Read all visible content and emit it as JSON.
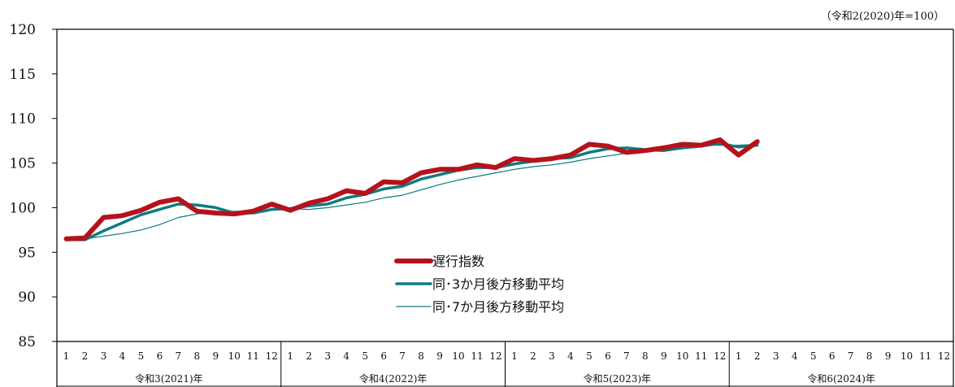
{
  "chart_data": {
    "type": "line",
    "unit_note": "（令和2(2020)年=100）",
    "ylim": [
      85,
      120
    ],
    "yticks": [
      85,
      90,
      95,
      100,
      105,
      110,
      115,
      120
    ],
    "x_months": [
      "1",
      "2",
      "3",
      "4",
      "5",
      "6",
      "7",
      "8",
      "9",
      "10",
      "11",
      "12",
      "1",
      "2",
      "3",
      "4",
      "5",
      "6",
      "7",
      "8",
      "9",
      "10",
      "11",
      "12",
      "1",
      "2",
      "3",
      "4",
      "5",
      "6",
      "7",
      "8",
      "9",
      "10",
      "11",
      "12",
      "1",
      "2",
      "3",
      "4",
      "5",
      "6",
      "7",
      "8",
      "9",
      "10",
      "11",
      "12"
    ],
    "year_labels": [
      "令和3(2021)年",
      "令和4(2022)年",
      "令和5(2023)年",
      "令和6(2024)年"
    ],
    "grid": false,
    "legend_position": "center",
    "series": [
      {
        "name": "遅行指数",
        "color": "#b5121b",
        "width": 6,
        "values": [
          96.5,
          96.6,
          98.9,
          99.1,
          99.7,
          100.6,
          101.0,
          99.6,
          99.4,
          99.3,
          99.6,
          100.4,
          99.7,
          100.5,
          101.0,
          101.9,
          101.6,
          102.9,
          102.8,
          103.9,
          104.3,
          104.3,
          104.8,
          104.5,
          105.5,
          105.3,
          105.5,
          105.9,
          107.1,
          106.9,
          106.2,
          106.4,
          106.7,
          107.1,
          107.0,
          107.6,
          105.9,
          107.4
        ]
      },
      {
        "name": "同･3か月後方移動平均",
        "color": "#0e7b82",
        "width": 3.5,
        "values": [
          96.4,
          96.4,
          97.4,
          98.3,
          99.2,
          99.8,
          100.4,
          100.3,
          100.0,
          99.4,
          99.4,
          99.8,
          99.9,
          100.2,
          100.4,
          101.1,
          101.5,
          102.1,
          102.4,
          103.2,
          103.7,
          104.2,
          104.5,
          104.5,
          104.9,
          105.2,
          105.5,
          105.6,
          106.2,
          106.6,
          106.7,
          106.5,
          106.4,
          106.7,
          106.9,
          107.2,
          106.8,
          107.0
        ]
      },
      {
        "name": "同･7か月後方移動平均",
        "color": "#0e7b82",
        "width": 1.2,
        "values": [
          96.4,
          96.5,
          96.8,
          97.1,
          97.5,
          98.1,
          98.9,
          99.3,
          99.5,
          99.6,
          99.6,
          99.8,
          99.9,
          99.8,
          100.0,
          100.3,
          100.6,
          101.1,
          101.4,
          102.0,
          102.6,
          103.1,
          103.5,
          103.9,
          104.3,
          104.6,
          104.8,
          105.1,
          105.5,
          105.8,
          106.1,
          106.4,
          106.5,
          106.8,
          107.0,
          107.0,
          107.0,
          107.1
        ]
      }
    ]
  }
}
